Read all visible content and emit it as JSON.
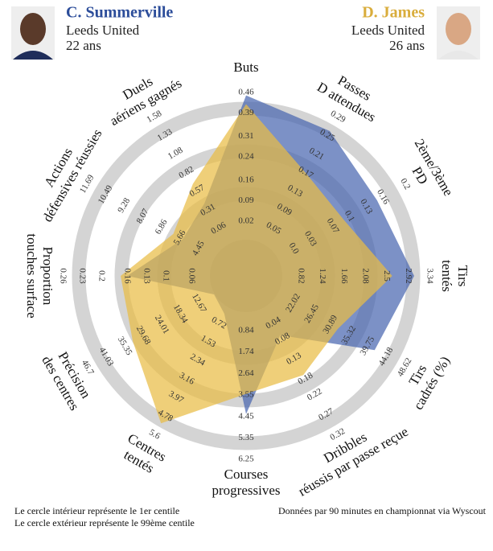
{
  "players": [
    {
      "club": "Leeds United",
      "age": "22 ans"
    },
    {
      "club": "Leeds United",
      "age": "26 ans"
    }
  ],
  "chart_data": {
    "type": "radar",
    "axes": [
      {
        "label": [
          "Buts"
        ],
        "ticks": [
          0.02,
          0.09,
          0.16,
          0.24,
          0.31,
          0.39,
          0.46
        ]
      },
      {
        "label": [
          "Passes",
          "D attendues"
        ],
        "ticks": [
          0.05,
          0.09,
          0.13,
          0.17,
          0.21,
          0.25,
          0.29
        ]
      },
      {
        "label": [
          "2ème/3ème",
          "PD"
        ],
        "ticks": [
          {
            "value": 0,
            "label": "0.0"
          },
          0.03,
          0.07,
          0.1,
          0.13,
          0.16,
          0.2
        ]
      },
      {
        "label": [
          "Tirs",
          "tentés"
        ],
        "ticks": [
          0.82,
          1.24,
          1.66,
          2.08,
          2.5,
          2.92,
          3.34
        ]
      },
      {
        "label": [
          "Tirs",
          "cadrés (%)"
        ],
        "ticks": [
          22.02,
          26.45,
          30.89,
          35.32,
          39.75,
          44.18,
          48.62
        ]
      },
      {
        "label": [
          "Dribbles",
          "réussis par passe reçue"
        ],
        "ticks": [
          0.04,
          0.08,
          0.13,
          0.18,
          0.22,
          0.27,
          0.32
        ]
      },
      {
        "label": [
          "Courses",
          "progressives"
        ],
        "ticks": [
          0.84,
          1.74,
          2.64,
          3.55,
          4.45,
          5.35,
          6.25
        ]
      },
      {
        "label": [
          "Centres",
          "tentés"
        ],
        "ticks": [
          0.72,
          1.53,
          2.34,
          3.16,
          3.97,
          4.78,
          5.6
        ]
      },
      {
        "label": [
          "Précision",
          "des centres"
        ],
        "ticks": [
          12.67,
          18.34,
          24.01,
          29.68,
          35.35,
          41.03,
          46.7
        ]
      },
      {
        "label": [
          "Proportion",
          "touches surface"
        ],
        "ticks": [
          0.06,
          0.1,
          0.13,
          0.16,
          0.2,
          0.23,
          0.26
        ]
      },
      {
        "label": [
          "Actions",
          "défensives réussies"
        ],
        "ticks": [
          4.45,
          5.66,
          6.86,
          8.07,
          9.28,
          10.49,
          11.69
        ]
      },
      {
        "label": [
          "Duels",
          "aériens gagnés"
        ],
        "ticks": [
          0.06,
          0.31,
          0.57,
          0.82,
          1.08,
          1.33,
          1.58
        ]
      }
    ],
    "series": [
      {
        "name": "C. Summerville",
        "color": "#4a66b0",
        "values": [
          0.45,
          0.26,
          0.15,
          3.04,
          41.4,
          0.07,
          4.35,
          0.3,
          8,
          0.16,
          5.5,
          0.4
        ]
      },
      {
        "name": "D. James",
        "color": "#e9bd45",
        "values": [
          0.42,
          0.17,
          0.09,
          2.61,
          32.6,
          0.17,
          3.5,
          5.1,
          32.8,
          0.17,
          6.1,
          0.67
        ]
      }
    ]
  },
  "notes": [
    "Le cercle intérieur représente le 1er centile",
    "Le cercle extérieur représente le 99ème centile"
  ],
  "source": "Données par 90 minutes en championnat via Wyscout"
}
